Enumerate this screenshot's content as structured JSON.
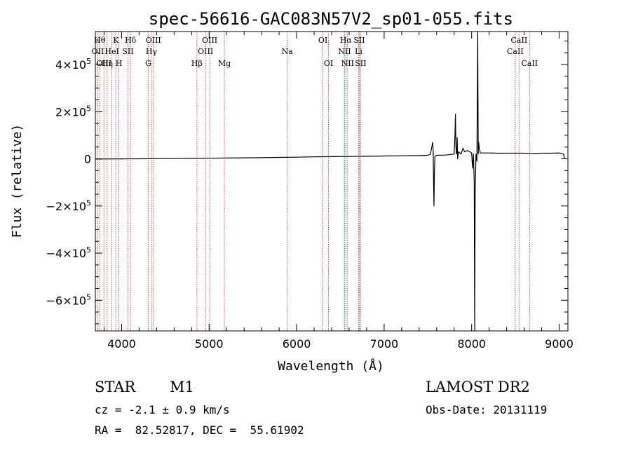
{
  "info": {
    "object_class": "STAR",
    "subclass": "M1",
    "survey": "LAMOST DR2",
    "cz": "cz = -2.1 ± 0.9 km/s",
    "obs_date": "Obs-Date: 20131119",
    "coords": "RA =  82.52817, DEC =  55.61902"
  },
  "chart_data": {
    "type": "line",
    "title": "spec-56616-GAC083N57V2_sp01-055.fits",
    "xlabel": "Wavelength (Å)",
    "ylabel": "Flux (relative)",
    "xlim": [
      3700,
      9100
    ],
    "ylim": [
      -730000,
      540000
    ],
    "x_ticks": [
      4000,
      5000,
      6000,
      7000,
      8000,
      9000
    ],
    "x_tick_labels": [
      "4000",
      "5000",
      "6000",
      "7000",
      "8000",
      "9000"
    ],
    "y_ticks": [
      -600000,
      -400000,
      -200000,
      0,
      200000,
      400000
    ],
    "y_tick_labels": [
      {
        "mant": "−6×10",
        "exp": "5"
      },
      {
        "mant": "−4×10",
        "exp": "5"
      },
      {
        "mant": "−2×10",
        "exp": "5"
      },
      {
        "mant": "0",
        "exp": ""
      },
      {
        "mant": "2×10",
        "exp": "5"
      },
      {
        "mant": "4×10",
        "exp": "5"
      }
    ],
    "line_color": "#000000",
    "marker_color": "#b03030",
    "spectral_lines": [
      {
        "wl": 3750,
        "label": "Hθ",
        "row": 0
      },
      {
        "wl": 3727,
        "label": "OII",
        "row": 1
      },
      {
        "wl": 3798,
        "label": "OIII",
        "row": 2
      },
      {
        "wl": 3835,
        "label": "Hη",
        "row": 2
      },
      {
        "wl": 3889,
        "label": "HeI",
        "row": 1
      },
      {
        "wl": 3934,
        "label": "K",
        "row": 0
      },
      {
        "wl": 3969,
        "label": "H",
        "row": 2
      },
      {
        "wl": 4072,
        "label": "SII",
        "row": 1
      },
      {
        "wl": 4102,
        "label": "Hδ",
        "row": 0
      },
      {
        "wl": 4304,
        "label": "G",
        "row": 2
      },
      {
        "wl": 4341,
        "label": "Hγ",
        "row": 1
      },
      {
        "wl": 4363,
        "label": "OIII",
        "row": 0
      },
      {
        "wl": 4861,
        "label": "Hβ",
        "row": 2
      },
      {
        "wl": 4959,
        "label": "OIII",
        "row": 1
      },
      {
        "wl": 5007,
        "label": "OIII",
        "row": 0
      },
      {
        "wl": 5175,
        "label": "Mg",
        "row": 2
      },
      {
        "wl": 5893,
        "label": "Na",
        "row": 1
      },
      {
        "wl": 6300,
        "label": "OI",
        "row": 0
      },
      {
        "wl": 6364,
        "label": "OI",
        "row": 2
      },
      {
        "wl": 6548,
        "label": "NII",
        "row": 1
      },
      {
        "wl": 6563,
        "label": "Hα",
        "row": 0
      },
      {
        "wl": 6583,
        "label": "NII",
        "row": 2
      },
      {
        "wl": 6708,
        "label": "Li",
        "row": 1
      },
      {
        "wl": 6716,
        "label": "SII",
        "row": 0
      },
      {
        "wl": 6731,
        "label": "SII",
        "row": 2
      },
      {
        "wl": 8498,
        "label": "CaII",
        "row": 1
      },
      {
        "wl": 8542,
        "label": "CaII",
        "row": 0
      },
      {
        "wl": 8662,
        "label": "CaII",
        "row": 2
      }
    ],
    "series": [
      {
        "points": [
          [
            3700,
            -1000
          ],
          [
            3800,
            -800
          ],
          [
            4000,
            -200
          ],
          [
            4200,
            300
          ],
          [
            4500,
            1000
          ],
          [
            4800,
            2000
          ],
          [
            5000,
            2700
          ],
          [
            5200,
            3500
          ],
          [
            5500,
            4500
          ],
          [
            5800,
            6000
          ],
          [
            6000,
            7000
          ],
          [
            6200,
            8500
          ],
          [
            6400,
            9500
          ],
          [
            6600,
            10000
          ],
          [
            6800,
            11000
          ],
          [
            7000,
            12000
          ],
          [
            7200,
            13000
          ],
          [
            7400,
            14000
          ],
          [
            7500,
            15000
          ],
          [
            7530,
            20000
          ],
          [
            7550,
            60000
          ],
          [
            7555,
            70000
          ],
          [
            7560,
            40000
          ],
          [
            7565,
            -100000
          ],
          [
            7570,
            -200000
          ],
          [
            7575,
            -50000
          ],
          [
            7580,
            10000
          ],
          [
            7600,
            15000
          ],
          [
            7700,
            16000
          ],
          [
            7800,
            20000
          ],
          [
            7810,
            110000
          ],
          [
            7815,
            190000
          ],
          [
            7820,
            60000
          ],
          [
            7825,
            20000
          ],
          [
            7830,
            30000
          ],
          [
            7835,
            90000
          ],
          [
            7840,
            0
          ],
          [
            7850,
            30000
          ],
          [
            7880,
            20000
          ],
          [
            7900,
            45000
          ],
          [
            7920,
            30000
          ],
          [
            7950,
            35000
          ],
          [
            7980,
            30000
          ],
          [
            8000,
            25000
          ],
          [
            8010,
            -40000
          ],
          [
            8020,
            20000
          ],
          [
            8030,
            -100000
          ],
          [
            8035,
            -730000
          ],
          [
            8040,
            -150000
          ],
          [
            8050,
            20000
          ],
          [
            8060,
            -10000
          ],
          [
            8070,
            540000
          ],
          [
            8075,
            20000
          ],
          [
            8080,
            70000
          ],
          [
            8090,
            40000
          ],
          [
            8100,
            25000
          ],
          [
            8200,
            25000
          ],
          [
            8300,
            24000
          ],
          [
            8400,
            24000
          ],
          [
            8500,
            24000
          ],
          [
            8600,
            24000
          ],
          [
            8700,
            23000
          ],
          [
            8800,
            24000
          ],
          [
            8900,
            24000
          ],
          [
            9000,
            25000
          ],
          [
            9050,
            20000
          ],
          [
            9060,
            2000
          ]
        ]
      }
    ]
  }
}
